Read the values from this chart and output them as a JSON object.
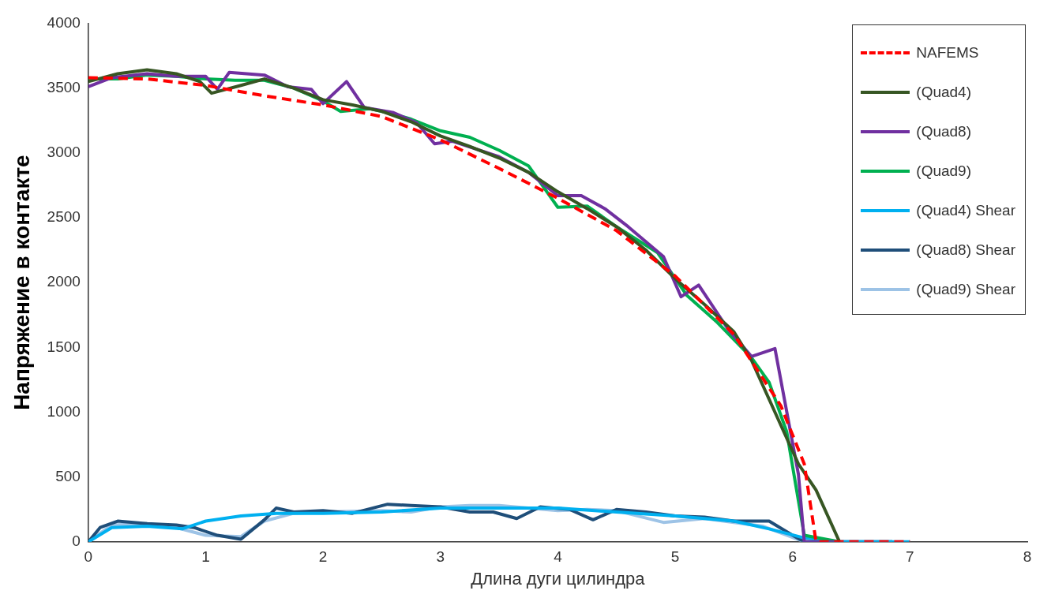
{
  "chart_data": {
    "type": "line",
    "xlabel": "Длина дуги цилиндра",
    "ylabel": "Напряжение в контакте",
    "xlim": [
      0,
      8
    ],
    "xticks": [
      0,
      1,
      2,
      3,
      4,
      5,
      6,
      7,
      8
    ],
    "ylim": [
      0,
      4000
    ],
    "yticks": [
      0,
      500,
      1000,
      1500,
      2000,
      2500,
      3000,
      3500,
      4000
    ],
    "grid": false,
    "legend": "top right",
    "marker": "none",
    "series": [
      {
        "name": "NAFEMS",
        "color": "#ff0000",
        "line_style": "dashed",
        "x": [
          0,
          0.5,
          1,
          1.5,
          2,
          2.5,
          3,
          3.5,
          4,
          4.5,
          5,
          5.5,
          5.9,
          6.1,
          6.2,
          6.8,
          7
        ],
        "values": [
          3580,
          3570,
          3520,
          3440,
          3370,
          3280,
          3100,
          2880,
          2650,
          2400,
          2050,
          1600,
          1050,
          600,
          0,
          0,
          0
        ]
      },
      {
        "name": "(Quad4)",
        "color": "#375623",
        "x": [
          0,
          0.25,
          0.5,
          0.75,
          0.95,
          1.05,
          1.3,
          1.5,
          1.75,
          2,
          2.25,
          2.5,
          2.75,
          3,
          3.25,
          3.5,
          3.75,
          4,
          4.25,
          4.5,
          4.75,
          5,
          5.25,
          5.5,
          5.65,
          5.85,
          6.05,
          6.2,
          6.4
        ],
        "values": [
          3550,
          3610,
          3640,
          3610,
          3550,
          3460,
          3520,
          3570,
          3500,
          3410,
          3370,
          3320,
          3240,
          3130,
          3050,
          2960,
          2850,
          2700,
          2570,
          2430,
          2250,
          2030,
          1830,
          1620,
          1400,
          1000,
          600,
          400,
          0
        ]
      },
      {
        "name": "(Quad8)",
        "color": "#7030a0",
        "x": [
          0,
          0.2,
          0.5,
          0.75,
          1,
          1.1,
          1.2,
          1.5,
          1.7,
          1.9,
          2,
          2.2,
          2.35,
          2.6,
          2.8,
          2.95,
          3.1,
          3.5,
          3.75,
          4,
          4.2,
          4.4,
          4.6,
          4.9,
          5.05,
          5.2,
          5.45,
          5.65,
          5.85,
          6.05,
          6.1,
          6.4
        ],
        "values": [
          3510,
          3580,
          3610,
          3590,
          3590,
          3490,
          3620,
          3600,
          3510,
          3490,
          3380,
          3550,
          3350,
          3310,
          3230,
          3070,
          3090,
          2970,
          2850,
          2670,
          2670,
          2570,
          2430,
          2200,
          1890,
          1980,
          1640,
          1430,
          1490,
          520,
          0,
          0
        ]
      },
      {
        "name": "(Quad9)",
        "color": "#00b050",
        "x": [
          0,
          0.25,
          0.5,
          0.75,
          1,
          1.25,
          1.5,
          1.75,
          2,
          2.15,
          2.4,
          2.6,
          2.75,
          3,
          3.25,
          3.5,
          3.75,
          4,
          4.25,
          4.5,
          4.85,
          5.1,
          5.35,
          5.65,
          5.8,
          5.95,
          6.1,
          6.4
        ],
        "values": [
          3570,
          3570,
          3600,
          3590,
          3570,
          3560,
          3560,
          3500,
          3400,
          3320,
          3340,
          3300,
          3260,
          3170,
          3120,
          3020,
          2900,
          2580,
          2590,
          2430,
          2230,
          1900,
          1700,
          1420,
          1230,
          850,
          50,
          0
        ]
      },
      {
        "name": "(Quad4) Shear",
        "color": "#00b0f0",
        "x": [
          0,
          0.2,
          0.5,
          0.8,
          1,
          1.3,
          1.6,
          2,
          2.5,
          3,
          3.5,
          4,
          4.5,
          5,
          5.5,
          5.8,
          6.1,
          6.4,
          7
        ],
        "values": [
          0,
          110,
          120,
          100,
          160,
          200,
          220,
          220,
          230,
          260,
          260,
          260,
          230,
          200,
          160,
          100,
          30,
          0,
          0
        ]
      },
      {
        "name": "(Quad8) Shear",
        "color": "#1f4e79",
        "x": [
          0,
          0.1,
          0.25,
          0.5,
          0.75,
          0.9,
          1.1,
          1.3,
          1.5,
          1.6,
          1.75,
          2,
          2.25,
          2.55,
          2.75,
          3,
          3.25,
          3.45,
          3.65,
          3.85,
          4.1,
          4.3,
          4.5,
          4.75,
          5,
          5.25,
          5.5,
          5.8,
          6,
          6.1,
          6.85
        ],
        "values": [
          0,
          110,
          160,
          140,
          130,
          110,
          50,
          20,
          170,
          260,
          230,
          240,
          220,
          290,
          280,
          270,
          230,
          230,
          180,
          270,
          250,
          170,
          250,
          230,
          200,
          190,
          160,
          160,
          50,
          0,
          0
        ]
      },
      {
        "name": "(Quad9) Shear",
        "color": "#9dc3e6",
        "x": [
          0,
          0.2,
          0.5,
          0.75,
          1,
          1.3,
          1.5,
          1.75,
          2,
          2.5,
          2.75,
          3,
          3.25,
          3.5,
          3.75,
          4,
          4.25,
          4.5,
          4.9,
          5.25,
          5.5,
          5.75,
          6.1,
          6.85
        ],
        "values": [
          0,
          130,
          140,
          110,
          50,
          40,
          160,
          220,
          230,
          240,
          230,
          270,
          280,
          280,
          260,
          240,
          250,
          240,
          150,
          180,
          150,
          120,
          0,
          0
        ]
      }
    ]
  }
}
